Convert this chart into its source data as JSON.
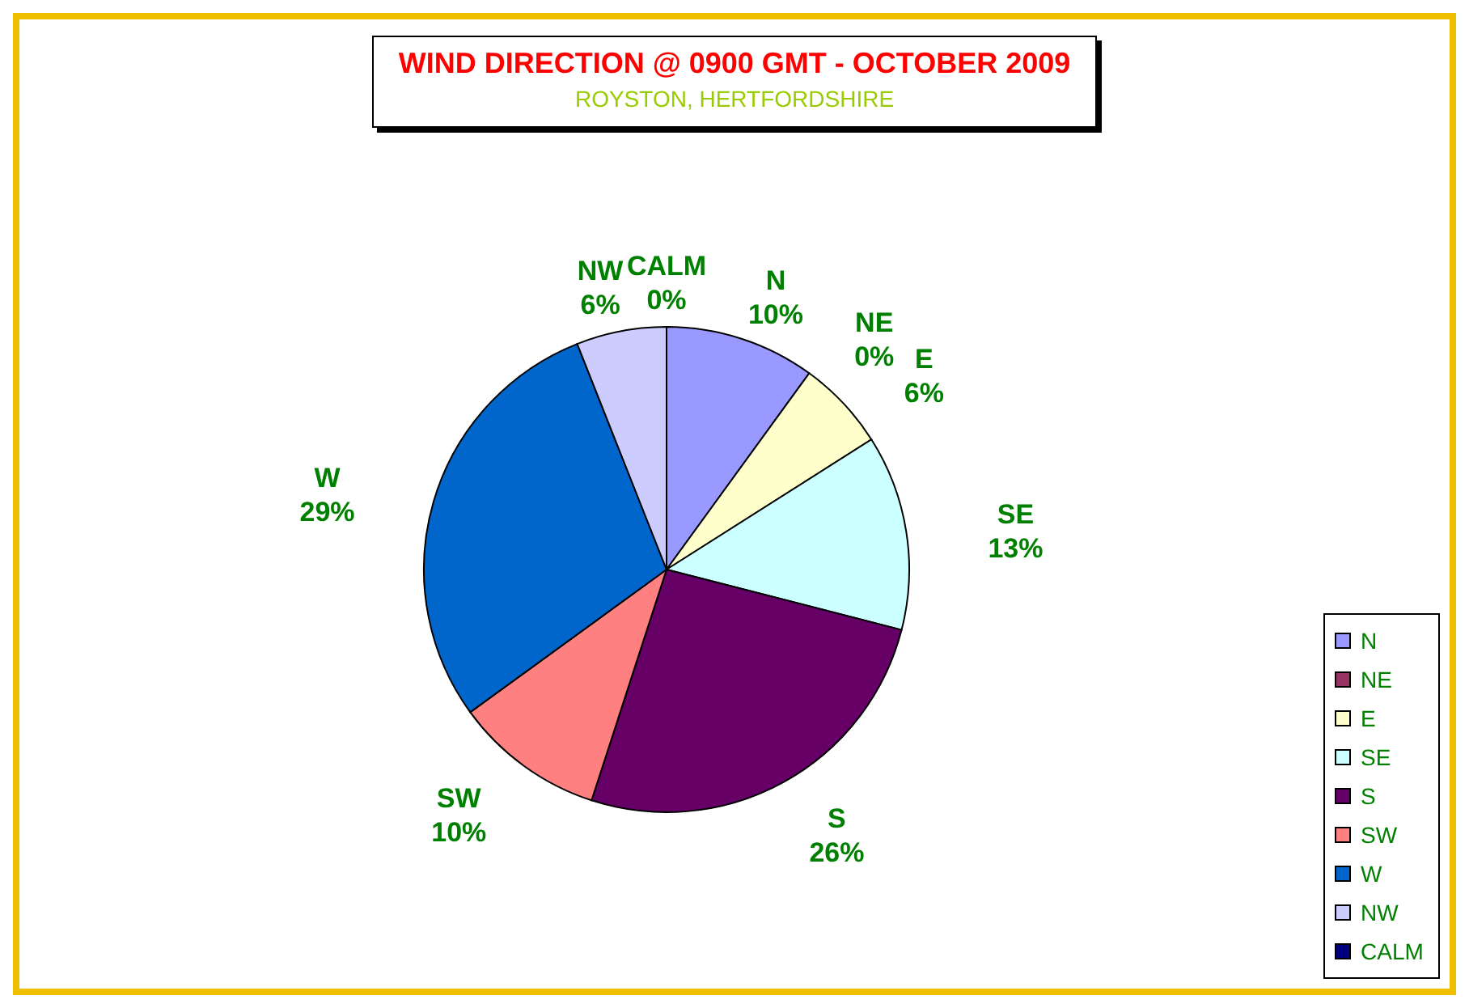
{
  "chart_data": {
    "type": "pie",
    "title": "WIND DIRECTION @ 0900 GMT - OCTOBER 2009",
    "subtitle": "ROYSTON, HERTFORDSHIRE",
    "categories": [
      "N",
      "NE",
      "E",
      "SE",
      "S",
      "SW",
      "W",
      "NW",
      "CALM"
    ],
    "values": [
      10,
      0,
      6,
      13,
      26,
      10,
      29,
      6,
      0
    ],
    "colors": [
      "#9999ff",
      "#993366",
      "#ffffcc",
      "#ccffff",
      "#660066",
      "#ff8080",
      "#0066cc",
      "#ccccff",
      "#000080"
    ],
    "value_labels": [
      "10%",
      "0%",
      "6%",
      "13%",
      "26%",
      "10%",
      "29%",
      "6%",
      "0%"
    ],
    "legend": "bottom right"
  }
}
